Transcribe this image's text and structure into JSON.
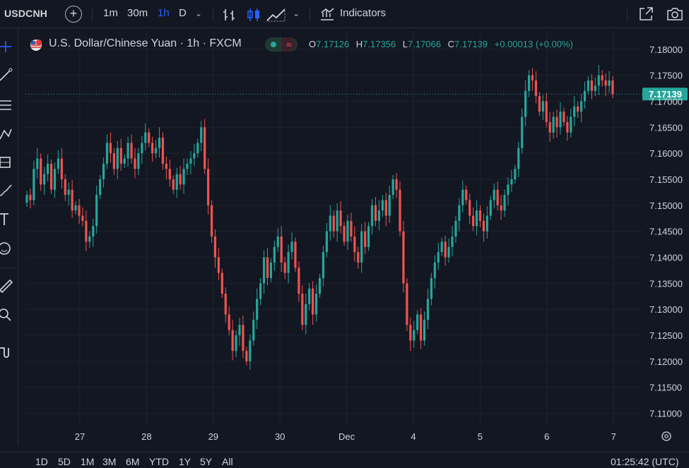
{
  "toolbar": {
    "symbol": "USDCNH",
    "add_symbol": "+",
    "intervals": [
      "1m",
      "30m",
      "1h",
      "D"
    ],
    "active_interval": "1h",
    "indicators_label": "Indicators"
  },
  "legend": {
    "title": "U.S. Dollar/Chinese Yuan · 1h · FXCM",
    "open_key": "O",
    "open": "7.17126",
    "high_key": "H",
    "high": "7.17356",
    "low_key": "L",
    "low": "7.17066",
    "close_key": "C",
    "close": "7.17139",
    "change": "+0.00013 (+0.00%)"
  },
  "bottombar": {
    "ranges": [
      "1D",
      "5D",
      "1M",
      "3M",
      "6M",
      "YTD",
      "1Y",
      "5Y",
      "All"
    ],
    "clock": "01:25:42 (UTC)"
  },
  "colors": {
    "background": "#131722",
    "up": "#26a69a",
    "down": "#ef5350",
    "active_interval": "#2962ff",
    "text": "#d1d4dc",
    "grid": "#1e222d",
    "last_price": "#26a69a"
  },
  "chart_data": {
    "type": "candlestick",
    "symbol": "USDCNH",
    "interval": "1h",
    "ylim": [
      7.1075,
      7.1835
    ],
    "y_ticks": [
      "7.18000",
      "7.17500",
      "7.17000",
      "7.16500",
      "7.16000",
      "7.15500",
      "7.15000",
      "7.14500",
      "7.14000",
      "7.13500",
      "7.13000",
      "7.12500",
      "7.12000",
      "7.11500",
      "7.11000"
    ],
    "x_ticks": [
      "27",
      "28",
      "29",
      "30",
      "Dec",
      "4",
      "5",
      "6",
      "7"
    ],
    "last_price": "7.17139",
    "last_price_value": 7.17139,
    "closes": [
      7.152,
      7.151,
      7.157,
      7.159,
      7.154,
      7.156,
      7.158,
      7.153,
      7.157,
      7.159,
      7.155,
      7.152,
      7.153,
      7.149,
      7.15,
      7.148,
      7.147,
      7.143,
      7.144,
      7.146,
      7.152,
      7.155,
      7.158,
      7.162,
      7.16,
      7.157,
      7.161,
      7.158,
      7.159,
      7.162,
      7.159,
      7.157,
      7.16,
      7.162,
      7.164,
      7.162,
      7.16,
      7.161,
      7.163,
      7.158,
      7.157,
      7.155,
      7.153,
      7.156,
      7.154,
      7.157,
      7.158,
      7.159,
      7.16,
      7.162,
      7.165,
      7.157,
      7.15,
      7.144,
      7.14,
      7.137,
      7.133,
      7.129,
      7.126,
      7.122,
      7.125,
      7.127,
      7.122,
      7.12,
      7.124,
      7.128,
      7.132,
      7.135,
      7.14,
      7.136,
      7.139,
      7.142,
      7.144,
      7.139,
      7.137,
      7.141,
      7.143,
      7.138,
      7.133,
      7.127,
      7.131,
      7.134,
      7.129,
      7.133,
      7.136,
      7.141,
      7.145,
      7.148,
      7.145,
      7.149,
      7.146,
      7.143,
      7.147,
      7.144,
      7.141,
      7.139,
      7.145,
      7.142,
      7.146,
      7.15,
      7.147,
      7.149,
      7.151,
      7.148,
      7.152,
      7.155,
      7.153,
      7.145,
      7.135,
      7.127,
      7.124,
      7.126,
      7.129,
      7.124,
      7.128,
      7.132,
      7.136,
      7.139,
      7.141,
      7.143,
      7.14,
      7.142,
      7.144,
      7.147,
      7.15,
      7.153,
      7.151,
      7.148,
      7.146,
      7.149,
      7.147,
      7.145,
      7.148,
      7.151,
      7.153,
      7.15,
      7.149,
      7.152,
      7.154,
      7.155,
      7.157,
      7.161,
      7.167,
      7.172,
      7.175,
      7.174,
      7.171,
      7.168,
      7.17,
      7.166,
      7.164,
      7.167,
      7.165,
      7.168,
      7.166,
      7.164,
      7.167,
      7.169,
      7.168,
      7.17,
      7.172,
      7.174,
      7.172,
      7.173,
      7.175,
      7.174,
      7.173,
      7.174,
      7.1714
    ]
  }
}
